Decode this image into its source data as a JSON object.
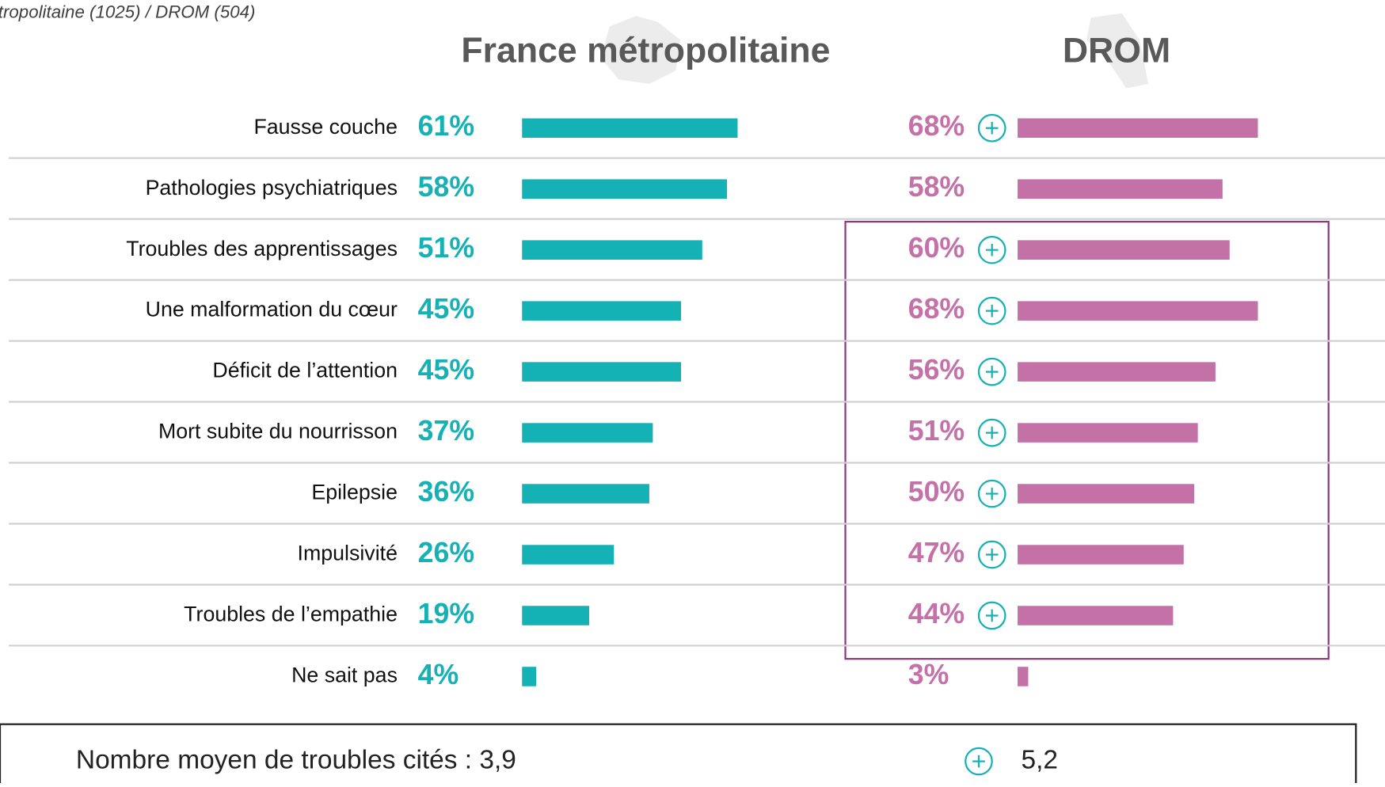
{
  "chart_data": {
    "type": "bar",
    "subtitle": "tropolitaine (1025) / DROM (504)",
    "categories": [
      "Fausse couche",
      "Pathologies psychiatriques",
      "Troubles des apprentissages",
      "Une malformation du cœur",
      "Déficit de l’attention",
      "Mort subite du nourrisson",
      "Epilepsie",
      "Impulsivité",
      "Troubles de l’empathie",
      "Ne sait pas"
    ],
    "series": [
      {
        "name": "France métropolitaine",
        "color": "#14b1b5",
        "values": [
          61,
          58,
          51,
          45,
          45,
          37,
          36,
          26,
          19,
          4
        ],
        "value_labels": [
          "61%",
          "58%",
          "51%",
          "45%",
          "45%",
          "37%",
          "36%",
          "26%",
          "19%",
          "4%"
        ]
      },
      {
        "name": "DROM",
        "color": "#c471a7",
        "values": [
          68,
          58,
          60,
          68,
          56,
          51,
          50,
          47,
          44,
          3
        ],
        "value_labels": [
          "68%",
          "58%",
          "60%",
          "68%",
          "56%",
          "51%",
          "50%",
          "47%",
          "44%",
          "3%"
        ],
        "significant": [
          true,
          false,
          true,
          true,
          true,
          true,
          true,
          true,
          true,
          false
        ]
      }
    ],
    "footer_label": "Nombre moyen de troubles cités :",
    "averages": [
      {
        "value": 3.9,
        "label": "3,9"
      },
      {
        "value": 5.2,
        "label": "5,2",
        "significant": true
      }
    ]
  }
}
